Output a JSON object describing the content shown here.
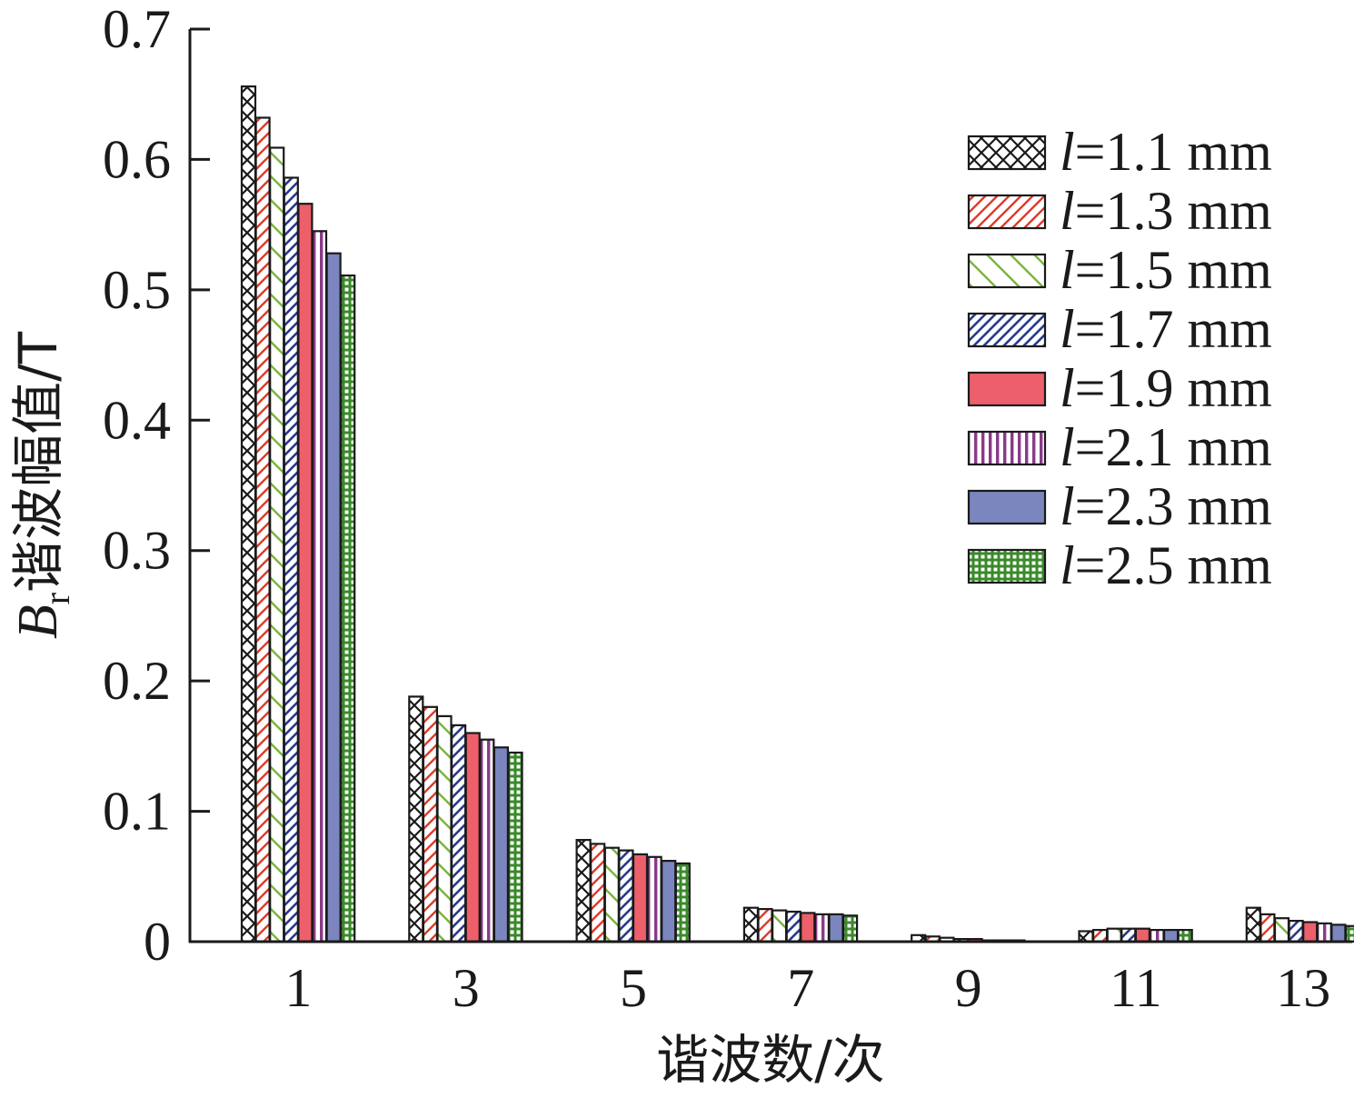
{
  "chart_data": {
    "type": "bar",
    "xlabel": "谐波数/次",
    "ylabel": {
      "symbol": "B",
      "subscript": "r",
      "text": "谐波幅值/T"
    },
    "ylim": [
      0,
      0.7
    ],
    "yticks": [
      "0",
      "0.1",
      "0.2",
      "0.3",
      "0.4",
      "0.5",
      "0.6",
      "0.7"
    ],
    "categories": [
      "1",
      "3",
      "5",
      "7",
      "9",
      "11",
      "13"
    ],
    "legend_position": "top-right",
    "grid": false,
    "series": [
      {
        "var": "l",
        "name": "=1.1 mm",
        "color": "#1a1a1a",
        "pattern": "crosshatch",
        "values": [
          0.656,
          0.188,
          0.078,
          0.026,
          0.005,
          0.008,
          0.026
        ]
      },
      {
        "var": "l",
        "name": "=1.3 mm",
        "color": "#e03a2a",
        "pattern": "diagonal-right",
        "values": [
          0.632,
          0.18,
          0.075,
          0.025,
          0.004,
          0.009,
          0.021
        ]
      },
      {
        "var": "l",
        "name": "=1.5 mm",
        "color": "#7ab53c",
        "pattern": "diagonal-left-wide",
        "values": [
          0.609,
          0.173,
          0.072,
          0.024,
          0.003,
          0.01,
          0.018
        ]
      },
      {
        "var": "l",
        "name": "=1.7 mm",
        "color": "#283a8c",
        "pattern": "diagonal-right-dense",
        "values": [
          0.586,
          0.166,
          0.07,
          0.023,
          0.002,
          0.01,
          0.016
        ]
      },
      {
        "var": "l",
        "name": "=1.9 mm",
        "color": "#ec5f6b",
        "pattern": "solid",
        "values": [
          0.566,
          0.16,
          0.067,
          0.022,
          0.002,
          0.01,
          0.015
        ]
      },
      {
        "var": "l",
        "name": "=2.1 mm",
        "color": "#8a3a8a",
        "pattern": "vertical",
        "values": [
          0.545,
          0.155,
          0.065,
          0.021,
          0.001,
          0.009,
          0.014
        ]
      },
      {
        "var": "l",
        "name": "=2.3 mm",
        "color": "#7a86bd",
        "pattern": "solid",
        "values": [
          0.528,
          0.149,
          0.062,
          0.021,
          0.001,
          0.009,
          0.013
        ]
      },
      {
        "var": "l",
        "name": "=2.5 mm",
        "color": "#3a8a2a",
        "pattern": "grid",
        "values": [
          0.511,
          0.145,
          0.06,
          0.02,
          0.001,
          0.009,
          0.012
        ]
      }
    ]
  }
}
